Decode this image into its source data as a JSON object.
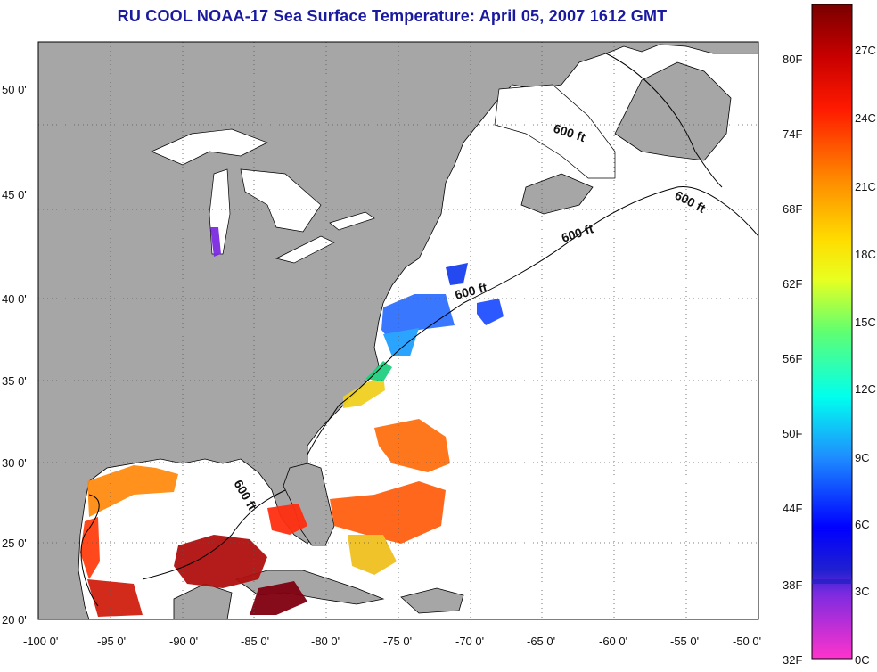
{
  "title": "RU COOL  NOAA-17  Sea Surface Temperature:  April 05, 2007 1612 GMT",
  "map": {
    "lon_range": [
      -100,
      -50
    ],
    "lat_range": [
      20,
      52.5
    ],
    "lon_ticks": [
      "-100 0'",
      "-95 0'",
      "-90 0'",
      "-85 0'",
      "-80 0'",
      "-75 0'",
      "-70 0'",
      "-65 0'",
      "-60 0'",
      "-55 0'",
      "-50 0'"
    ],
    "lat_ticks": [
      "20 0'",
      "25 0'",
      "30 0'",
      "35 0'",
      "40 0'",
      "45 0'",
      "50 0'"
    ],
    "contour_label": "600 ft",
    "land_color": "#a6a6a6",
    "ocean_nodata_color": "#ffffff"
  },
  "colorbar": {
    "fahrenheit_labels": [
      "80F",
      "74F",
      "68F",
      "62F",
      "56F",
      "50F",
      "44F",
      "38F",
      "32F"
    ],
    "celsius_labels": [
      "27C",
      "24C",
      "21C",
      "18C",
      "15C",
      "12C",
      "9C",
      "6C",
      "3C",
      "0C"
    ],
    "colors": [
      "#8b0000",
      "#ff0000",
      "#ff8c00",
      "#ffff00",
      "#7cff3f",
      "#00ffff",
      "#1e90ff",
      "#0000ff",
      "#7b2be0",
      "#ff33cc"
    ]
  }
}
